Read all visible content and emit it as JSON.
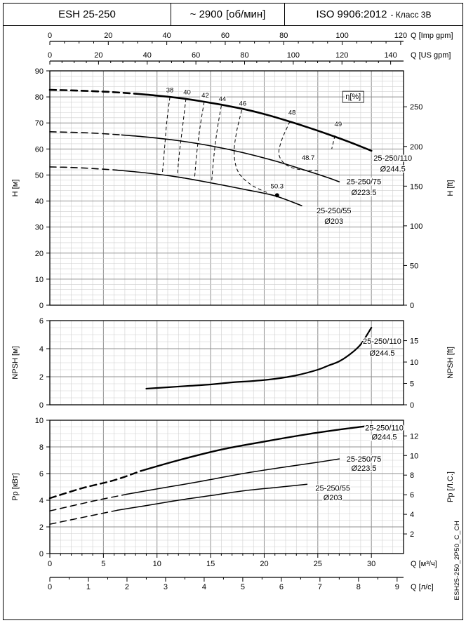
{
  "header": {
    "model": "ESH 25-250",
    "speed_value": "~ 2900",
    "speed_unit": "[об/мин]",
    "standard": "ISO 9906:2012",
    "standard_suffix": "- Класс 3В"
  },
  "side_code": "ESH25-250_2P50_C_CH",
  "chart_data": [
    {
      "type": "line",
      "title": "Head vs flow curves",
      "xlim": [
        0,
        33
      ],
      "ylim": [
        0,
        90
      ],
      "x_minor": 1,
      "x_major": 5,
      "y_minor": 2,
      "y_major": 10,
      "ylabel_left": "H [м]",
      "ylabel_right": "H [ft]",
      "left_ticks": [
        0,
        10,
        20,
        30,
        40,
        50,
        60,
        70,
        80,
        90
      ],
      "right_axis": {
        "factor": 3.2808,
        "ticks": [
          0,
          50,
          100,
          150,
          200,
          250
        ]
      },
      "top_axes": [
        {
          "label": "Q [Imp gpm]",
          "factor": 0.27276,
          "minor": 5,
          "ticks": [
            0,
            20,
            40,
            60,
            80,
            100,
            120
          ]
        },
        {
          "label": "Q [US gpm]",
          "factor": 0.22712,
          "minor": 5,
          "ticks": [
            0,
            20,
            40,
            60,
            80,
            100,
            120,
            140
          ]
        }
      ],
      "series": [
        {
          "name": "25-250/110",
          "diameter": "Ø244.5",
          "width": 2.6,
          "dashed": [
            [
              0,
              82.7
            ],
            [
              2,
              82.5
            ],
            [
              4,
              82.2
            ],
            [
              6,
              81.8
            ],
            [
              8.1,
              81.2
            ]
          ],
          "solid": [
            [
              8.1,
              81.2
            ],
            [
              10,
              80.5
            ],
            [
              12,
              79.6
            ],
            [
              14,
              78.4
            ],
            [
              16,
              77
            ],
            [
              18,
              75.4
            ],
            [
              20,
              73.4
            ],
            [
              22,
              71
            ],
            [
              24,
              68.4
            ],
            [
              26,
              65.6
            ],
            [
              28,
              62.6
            ],
            [
              30,
              59.3
            ]
          ]
        },
        {
          "name": "25-250/75",
          "diameter": "Ø223.5",
          "width": 1.6,
          "dashed": [
            [
              0,
              66.6
            ],
            [
              2,
              66.4
            ],
            [
              4,
              66.1
            ],
            [
              6.7,
              65.4
            ]
          ],
          "solid": [
            [
              6.7,
              65.4
            ],
            [
              9,
              64.6
            ],
            [
              12,
              63.2
            ],
            [
              15,
              61.2
            ],
            [
              18,
              58.6
            ],
            [
              21,
              55.4
            ],
            [
              24,
              51.6
            ],
            [
              26,
              48.9
            ],
            [
              27,
              47.4
            ]
          ]
        },
        {
          "name": "25-250/55",
          "diameter": "Ø203",
          "width": 1.6,
          "dashed": [
            [
              0,
              53.1
            ],
            [
              2,
              52.9
            ],
            [
              4,
              52.5
            ],
            [
              6.2,
              51.9
            ]
          ],
          "solid": [
            [
              6.2,
              51.9
            ],
            [
              9,
              50.8
            ],
            [
              12,
              49.2
            ],
            [
              15,
              47
            ],
            [
              18,
              44.6
            ],
            [
              21,
              42
            ],
            [
              23.5,
              38.2
            ]
          ]
        }
      ],
      "contours": [
        {
          "eff": 38,
          "points": [
            [
              11.2,
              79.9
            ],
            [
              10.9,
              70
            ],
            [
              10.7,
              60
            ],
            [
              10.5,
              50.7
            ]
          ]
        },
        {
          "eff": 40,
          "points": [
            [
              12.7,
              79.4
            ],
            [
              12.4,
              69
            ],
            [
              12.1,
              59
            ],
            [
              11.9,
              49.9
            ]
          ]
        },
        {
          "eff": 42,
          "points": [
            [
              14.4,
              78.1
            ],
            [
              14.0,
              68
            ],
            [
              13.7,
              58
            ],
            [
              13.5,
              48.6
            ]
          ]
        },
        {
          "eff": 44,
          "points": [
            [
              16.0,
              76.6
            ],
            [
              15.6,
              67
            ],
            [
              15.3,
              57
            ],
            [
              15.1,
              47.5
            ]
          ]
        },
        {
          "eff": 46,
          "points": [
            [
              17.9,
              74.9
            ],
            [
              17.4,
              66
            ],
            [
              17.2,
              58
            ],
            [
              17.6,
              51
            ],
            [
              18.8,
              46.2
            ],
            [
              20.3,
              43.2
            ]
          ]
        },
        {
          "eff": 48,
          "points": [
            [
              22.4,
              70.6
            ],
            [
              21.6,
              63
            ],
            [
              21.4,
              57.5
            ],
            [
              22.2,
              53.5
            ],
            [
              23.8,
              51.8
            ],
            [
              25.3,
              51.8
            ]
          ]
        },
        {
          "eff": 49,
          "points": [
            [
              26.6,
              65.2
            ],
            [
              26.3,
              60
            ]
          ]
        }
      ],
      "dot": {
        "q": 21.2,
        "v": 42.2
      },
      "annotations": [
        {
          "text": "η[%]",
          "q": 28.3,
          "v": 79.2,
          "size": 11,
          "box": true
        },
        {
          "text": "38",
          "q": 11.2,
          "v": 81.8,
          "size": 9.5
        },
        {
          "text": "40",
          "q": 12.8,
          "v": 81.0,
          "size": 9.5
        },
        {
          "text": "42",
          "q": 14.5,
          "v": 79.8,
          "size": 9.5
        },
        {
          "text": "44",
          "q": 16.1,
          "v": 78.4,
          "size": 9.5
        },
        {
          "text": "46",
          "q": 18.0,
          "v": 76.7,
          "size": 9.5
        },
        {
          "text": "48",
          "q": 22.6,
          "v": 73.1,
          "size": 9.5
        },
        {
          "text": "49",
          "q": 26.9,
          "v": 68.7,
          "size": 9.5
        },
        {
          "text": "48.7",
          "q": 24.1,
          "v": 55.8,
          "size": 9.5
        },
        {
          "text": "50.3",
          "q": 21.2,
          "v": 44.8,
          "size": 9.5
        },
        {
          "text": "25-250/110",
          "q": 32.0,
          "v": 55.5,
          "size": 11
        },
        {
          "text": "Ø244.5",
          "q": 32.0,
          "v": 51.3,
          "size": 11
        },
        {
          "text": "25-250/75",
          "q": 29.3,
          "v": 46.5,
          "size": 11
        },
        {
          "text": "Ø223.5",
          "q": 29.3,
          "v": 42.3,
          "size": 11
        },
        {
          "text": "25-250/55",
          "q": 26.5,
          "v": 35.3,
          "size": 11
        },
        {
          "text": "Ø203",
          "q": 26.5,
          "v": 31.2,
          "size": 11
        }
      ]
    },
    {
      "type": "line",
      "title": "NPSH curve",
      "xlim": [
        0,
        33
      ],
      "ylim": [
        0,
        6
      ],
      "x_minor": 1,
      "x_major": 5,
      "y_minor": 0.5,
      "y_major": 2,
      "ylabel_left": "NPSH [м]",
      "ylabel_right": "NPSH [ft]",
      "left_ticks": [
        0,
        2,
        4,
        6
      ],
      "right_axis": {
        "factor": 3.2808,
        "ticks": [
          0,
          5,
          10,
          15
        ]
      },
      "series": [
        {
          "name": "25-250/110",
          "diameter": "Ø244.5",
          "width": 2.2,
          "solid": [
            [
              9,
              1.15
            ],
            [
              11,
              1.25
            ],
            [
              13,
              1.35
            ],
            [
              15,
              1.45
            ],
            [
              17,
              1.6
            ],
            [
              19,
              1.7
            ],
            [
              21,
              1.85
            ],
            [
              23,
              2.1
            ],
            [
              25,
              2.5
            ],
            [
              26,
              2.8
            ],
            [
              27,
              3.1
            ],
            [
              28,
              3.6
            ],
            [
              29,
              4.3
            ],
            [
              30,
              5.5
            ]
          ]
        }
      ],
      "annotations": [
        {
          "text": "25-250/110",
          "q": 31.0,
          "v": 4.35,
          "size": 11
        },
        {
          "text": "Ø244.5",
          "q": 31.0,
          "v": 3.5,
          "size": 11
        }
      ]
    },
    {
      "type": "line",
      "title": "Power vs flow curves",
      "xlim": [
        0,
        33
      ],
      "ylim": [
        0,
        10
      ],
      "x_minor": 1,
      "x_major": 5,
      "y_minor": 0.5,
      "y_major": 2,
      "ylabel_left": "Pр [кВт]",
      "ylabel_right": "Pр [Л.С.]",
      "left_ticks": [
        0,
        2,
        4,
        6,
        8,
        10
      ],
      "right_axis": {
        "factor": 1.35962,
        "ticks": [
          2,
          4,
          6,
          8,
          10,
          12
        ]
      },
      "bottom_axes": [
        {
          "label": "Q [м³/ч]",
          "factor": 1,
          "minor": 1,
          "ticks": [
            0,
            5,
            10,
            15,
            20,
            25,
            30
          ]
        },
        {
          "label": "Q [л/с]",
          "factor": 3.6,
          "minor": 0.5,
          "ticks": [
            0,
            1,
            2,
            3,
            4,
            5,
            6,
            7,
            8,
            9
          ]
        }
      ],
      "series": [
        {
          "name": "25-250/110",
          "diameter": "Ø244.5",
          "width": 2.4,
          "dashed": [
            [
              0,
              4.15
            ],
            [
              3,
              4.9
            ],
            [
              6,
              5.5
            ],
            [
              8.5,
              6.2
            ]
          ],
          "solid": [
            [
              8.5,
              6.2
            ],
            [
              12,
              7.0
            ],
            [
              16,
              7.8
            ],
            [
              20,
              8.4
            ],
            [
              24,
              8.95
            ],
            [
              27,
              9.3
            ],
            [
              30,
              9.6
            ]
          ]
        },
        {
          "name": "25-250/75",
          "diameter": "Ø223.5",
          "width": 1.5,
          "dashed": [
            [
              0,
              3.2
            ],
            [
              3,
              3.75
            ],
            [
              5,
              4.1
            ],
            [
              7.2,
              4.45
            ]
          ],
          "solid": [
            [
              7.2,
              4.45
            ],
            [
              10,
              4.85
            ],
            [
              14,
              5.4
            ],
            [
              18,
              6.0
            ],
            [
              22,
              6.5
            ],
            [
              25,
              6.85
            ],
            [
              27,
              7.1
            ]
          ]
        },
        {
          "name": "25-250/55",
          "diameter": "Ø203",
          "width": 1.5,
          "dashed": [
            [
              0,
              2.2
            ],
            [
              3,
              2.7
            ],
            [
              6.3,
              3.25
            ]
          ],
          "solid": [
            [
              6.3,
              3.25
            ],
            [
              9,
              3.6
            ],
            [
              12,
              4.0
            ],
            [
              15,
              4.35
            ],
            [
              18,
              4.7
            ],
            [
              21,
              4.95
            ],
            [
              24,
              5.2
            ]
          ]
        }
      ],
      "annotations": [
        {
          "text": "25-250/110",
          "q": 31.2,
          "v": 9.25,
          "size": 11
        },
        {
          "text": "Ø244.5",
          "q": 31.2,
          "v": 8.55,
          "size": 11
        },
        {
          "text": "25-250/75",
          "q": 29.3,
          "v": 6.9,
          "size": 11
        },
        {
          "text": "Ø223.5",
          "q": 29.3,
          "v": 6.2,
          "size": 11
        },
        {
          "text": "25-250/55",
          "q": 26.4,
          "v": 4.7,
          "size": 11
        },
        {
          "text": "Ø203",
          "q": 26.4,
          "v": 4.0,
          "size": 11
        }
      ]
    }
  ]
}
